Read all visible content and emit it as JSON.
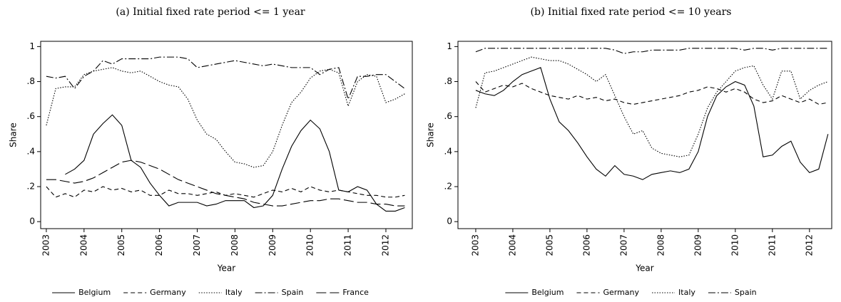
{
  "chart_data": [
    {
      "type": "line",
      "title": "(a) Initial fixed rate period <= 1 year",
      "xlabel": "Year",
      "ylabel": "Share",
      "legend": "bottom",
      "x": [
        2003,
        2003.25,
        2003.5,
        2003.75,
        2004,
        2004.25,
        2004.5,
        2004.75,
        2005,
        2005.25,
        2005.5,
        2005.75,
        2006,
        2006.25,
        2006.5,
        2006.75,
        2007,
        2007.25,
        2007.5,
        2007.75,
        2008,
        2008.25,
        2008.5,
        2008.75,
        2009,
        2009.25,
        2009.5,
        2009.75,
        2010,
        2010.25,
        2010.5,
        2010.75,
        2011,
        2011.25,
        2011.5,
        2011.75,
        2012,
        2012.25,
        2012.5
      ],
      "xlim": [
        2002.85,
        2012.7
      ],
      "xticks": [
        2003,
        2004,
        2005,
        2006,
        2007,
        2008,
        2009,
        2010,
        2011,
        2012
      ],
      "ylim": [
        -0.04,
        1.03
      ],
      "yticks": [
        0,
        {
          "value": 0.2,
          "label": ".2"
        },
        {
          "value": 0.4,
          "label": ".4"
        },
        {
          "value": 0.6,
          "label": ".6"
        },
        {
          "value": 0.8,
          "label": ".8"
        },
        1
      ],
      "series": [
        {
          "name": "Belgium",
          "color": "#000000",
          "dash": "none",
          "values": [
            null,
            null,
            0.27,
            0.3,
            0.35,
            0.5,
            0.56,
            0.61,
            0.55,
            0.35,
            0.31,
            0.22,
            0.15,
            0.09,
            0.11,
            0.11,
            0.11,
            0.09,
            0.1,
            0.12,
            0.12,
            0.12,
            0.08,
            0.09,
            0.15,
            0.3,
            0.43,
            0.52,
            0.58,
            0.53,
            0.4,
            0.18,
            0.17,
            0.2,
            0.18,
            0.1,
            0.06,
            0.06,
            0.08
          ]
        },
        {
          "name": "Germany",
          "color": "#000000",
          "dash": "6,4",
          "values": [
            0.2,
            0.14,
            0.16,
            0.14,
            0.18,
            0.17,
            0.2,
            0.18,
            0.19,
            0.17,
            0.18,
            0.15,
            0.15,
            0.18,
            0.16,
            0.16,
            0.15,
            0.16,
            0.17,
            0.15,
            0.16,
            0.15,
            0.14,
            0.16,
            0.18,
            0.17,
            0.19,
            0.17,
            0.2,
            0.18,
            0.17,
            0.18,
            0.17,
            0.16,
            0.15,
            0.15,
            0.14,
            0.14,
            0.15
          ]
        },
        {
          "name": "Italy",
          "color": "#000000",
          "dash": "1.5,2",
          "values": [
            0.55,
            0.76,
            0.77,
            0.77,
            0.84,
            0.86,
            0.87,
            0.88,
            0.86,
            0.85,
            0.86,
            0.83,
            0.8,
            0.78,
            0.77,
            0.7,
            0.58,
            0.5,
            0.47,
            0.4,
            0.34,
            0.33,
            0.31,
            0.32,
            0.4,
            0.55,
            0.68,
            0.74,
            0.82,
            0.86,
            0.87,
            0.85,
            0.66,
            0.8,
            0.84,
            0.83,
            0.68,
            0.7,
            0.73
          ]
        },
        {
          "name": "Spain",
          "color": "#000000",
          "dash": "10,3,2,3",
          "values": [
            0.83,
            0.82,
            0.83,
            0.76,
            0.83,
            0.86,
            0.92,
            0.9,
            0.93,
            0.93,
            0.93,
            0.93,
            0.94,
            0.94,
            0.94,
            0.93,
            0.88,
            0.89,
            0.9,
            0.91,
            0.92,
            0.91,
            0.9,
            0.89,
            0.9,
            0.89,
            0.88,
            0.88,
            0.88,
            0.84,
            0.87,
            0.88,
            0.7,
            0.83,
            0.83,
            0.84,
            0.84,
            0.8,
            0.76
          ]
        },
        {
          "name": "France",
          "color": "#000000",
          "dash": "14,5",
          "values": [
            0.24,
            0.24,
            0.23,
            0.22,
            0.23,
            0.25,
            0.28,
            0.31,
            0.34,
            0.35,
            0.34,
            0.32,
            0.3,
            0.27,
            0.24,
            0.22,
            0.2,
            0.18,
            0.16,
            0.15,
            0.14,
            0.13,
            0.11,
            0.1,
            0.09,
            0.09,
            0.1,
            0.11,
            0.12,
            0.12,
            0.13,
            0.13,
            0.12,
            0.11,
            0.11,
            0.1,
            0.1,
            0.09,
            0.09
          ]
        }
      ]
    },
    {
      "type": "line",
      "title": "(b) Initial fixed rate period <= 10 years",
      "xlabel": "Year",
      "ylabel": "Share",
      "legend": "bottom",
      "x": [
        2003,
        2003.25,
        2003.5,
        2003.75,
        2004,
        2004.25,
        2004.5,
        2004.75,
        2005,
        2005.25,
        2005.5,
        2005.75,
        2006,
        2006.25,
        2006.5,
        2006.75,
        2007,
        2007.25,
        2007.5,
        2007.75,
        2008,
        2008.25,
        2008.5,
        2008.75,
        2009,
        2009.25,
        2009.5,
        2009.75,
        2010,
        2010.25,
        2010.5,
        2010.75,
        2011,
        2011.25,
        2011.5,
        2011.75,
        2012,
        2012.25,
        2012.5
      ],
      "xlim": [
        2002.52,
        2012.6
      ],
      "xticks": [
        2003,
        2004,
        2005,
        2006,
        2007,
        2008,
        2009,
        2010,
        2011,
        2012
      ],
      "ylim": [
        -0.04,
        1.03
      ],
      "yticks": [
        0,
        {
          "value": 0.2,
          "label": ".2"
        },
        {
          "value": 0.4,
          "label": ".4"
        },
        {
          "value": 0.6,
          "label": ".6"
        },
        {
          "value": 0.8,
          "label": ".8"
        },
        1
      ],
      "series": [
        {
          "name": "Belgium",
          "color": "#000000",
          "dash": "none",
          "values": [
            0.75,
            0.73,
            0.72,
            0.75,
            0.8,
            0.84,
            0.86,
            0.88,
            0.7,
            0.57,
            0.52,
            0.45,
            0.37,
            0.3,
            0.26,
            0.32,
            0.27,
            0.26,
            0.24,
            0.27,
            0.28,
            0.29,
            0.28,
            0.3,
            0.4,
            0.6,
            0.72,
            0.77,
            0.8,
            0.78,
            0.66,
            0.37,
            0.38,
            0.43,
            0.46,
            0.34,
            0.28,
            0.3,
            0.5
          ]
        },
        {
          "name": "Germany",
          "color": "#000000",
          "dash": "6,4",
          "values": [
            0.8,
            0.74,
            0.76,
            0.78,
            0.77,
            0.79,
            0.76,
            0.74,
            0.72,
            0.71,
            0.7,
            0.72,
            0.7,
            0.71,
            0.69,
            0.7,
            0.68,
            0.67,
            0.68,
            0.69,
            0.7,
            0.71,
            0.72,
            0.74,
            0.75,
            0.77,
            0.76,
            0.74,
            0.76,
            0.74,
            0.7,
            0.68,
            0.69,
            0.72,
            0.7,
            0.68,
            0.7,
            0.67,
            0.68
          ]
        },
        {
          "name": "Italy",
          "color": "#000000",
          "dash": "1.5,2",
          "values": [
            0.65,
            0.85,
            0.86,
            0.88,
            0.9,
            0.92,
            0.94,
            0.93,
            0.92,
            0.92,
            0.9,
            0.87,
            0.84,
            0.8,
            0.84,
            0.72,
            0.6,
            0.5,
            0.52,
            0.42,
            0.39,
            0.38,
            0.37,
            0.38,
            0.5,
            0.65,
            0.74,
            0.8,
            0.86,
            0.88,
            0.89,
            0.78,
            0.7,
            0.86,
            0.86,
            0.7,
            0.75,
            0.78,
            0.8
          ]
        },
        {
          "name": "Spain",
          "color": "#000000",
          "dash": "10,3,2,3",
          "values": [
            0.97,
            0.99,
            0.99,
            0.99,
            0.99,
            0.99,
            0.99,
            0.99,
            0.99,
            0.99,
            0.99,
            0.99,
            0.99,
            0.99,
            0.99,
            0.98,
            0.96,
            0.97,
            0.97,
            0.98,
            0.98,
            0.98,
            0.98,
            0.99,
            0.99,
            0.99,
            0.99,
            0.99,
            0.99,
            0.98,
            0.99,
            0.99,
            0.98,
            0.99,
            0.99,
            0.99,
            0.99,
            0.99,
            0.99
          ]
        }
      ]
    }
  ]
}
